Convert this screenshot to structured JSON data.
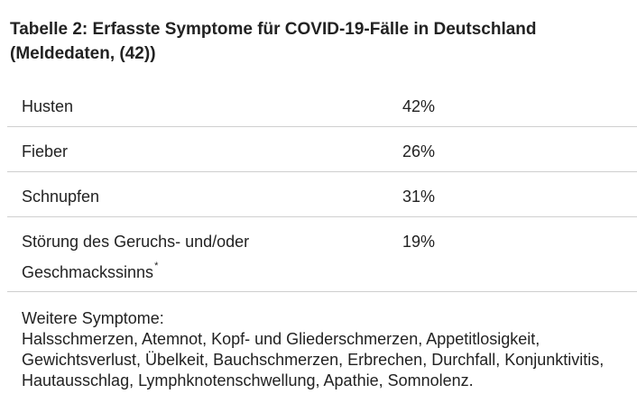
{
  "caption": "Tabelle 2: Erfasste Symptome für COVID-19-Fälle in Deutschland (Meldedaten, (42))",
  "rows": [
    {
      "symptom": "Husten",
      "percent": "42%"
    },
    {
      "symptom": "Fieber",
      "percent": "26%"
    },
    {
      "symptom": "Schnupfen",
      "percent": "31%"
    },
    {
      "symptom_line1": "Störung des Geruchs- und/oder",
      "symptom_line2": "Geschmackssinns",
      "marker": "*",
      "percent": "19%"
    }
  ],
  "further": {
    "heading": "Weitere Symptome:",
    "text": "Halsschmerzen, Atemnot, Kopf- und Gliederschmerzen, Appetitlosigkeit, Gewichtsverlust, Übelkeit, Bauchschmerzen, Erbrechen, Durchfall, Konjunktivitis, Hautausschlag, Lymphknotenschwellung, Apathie, Somnolenz."
  }
}
